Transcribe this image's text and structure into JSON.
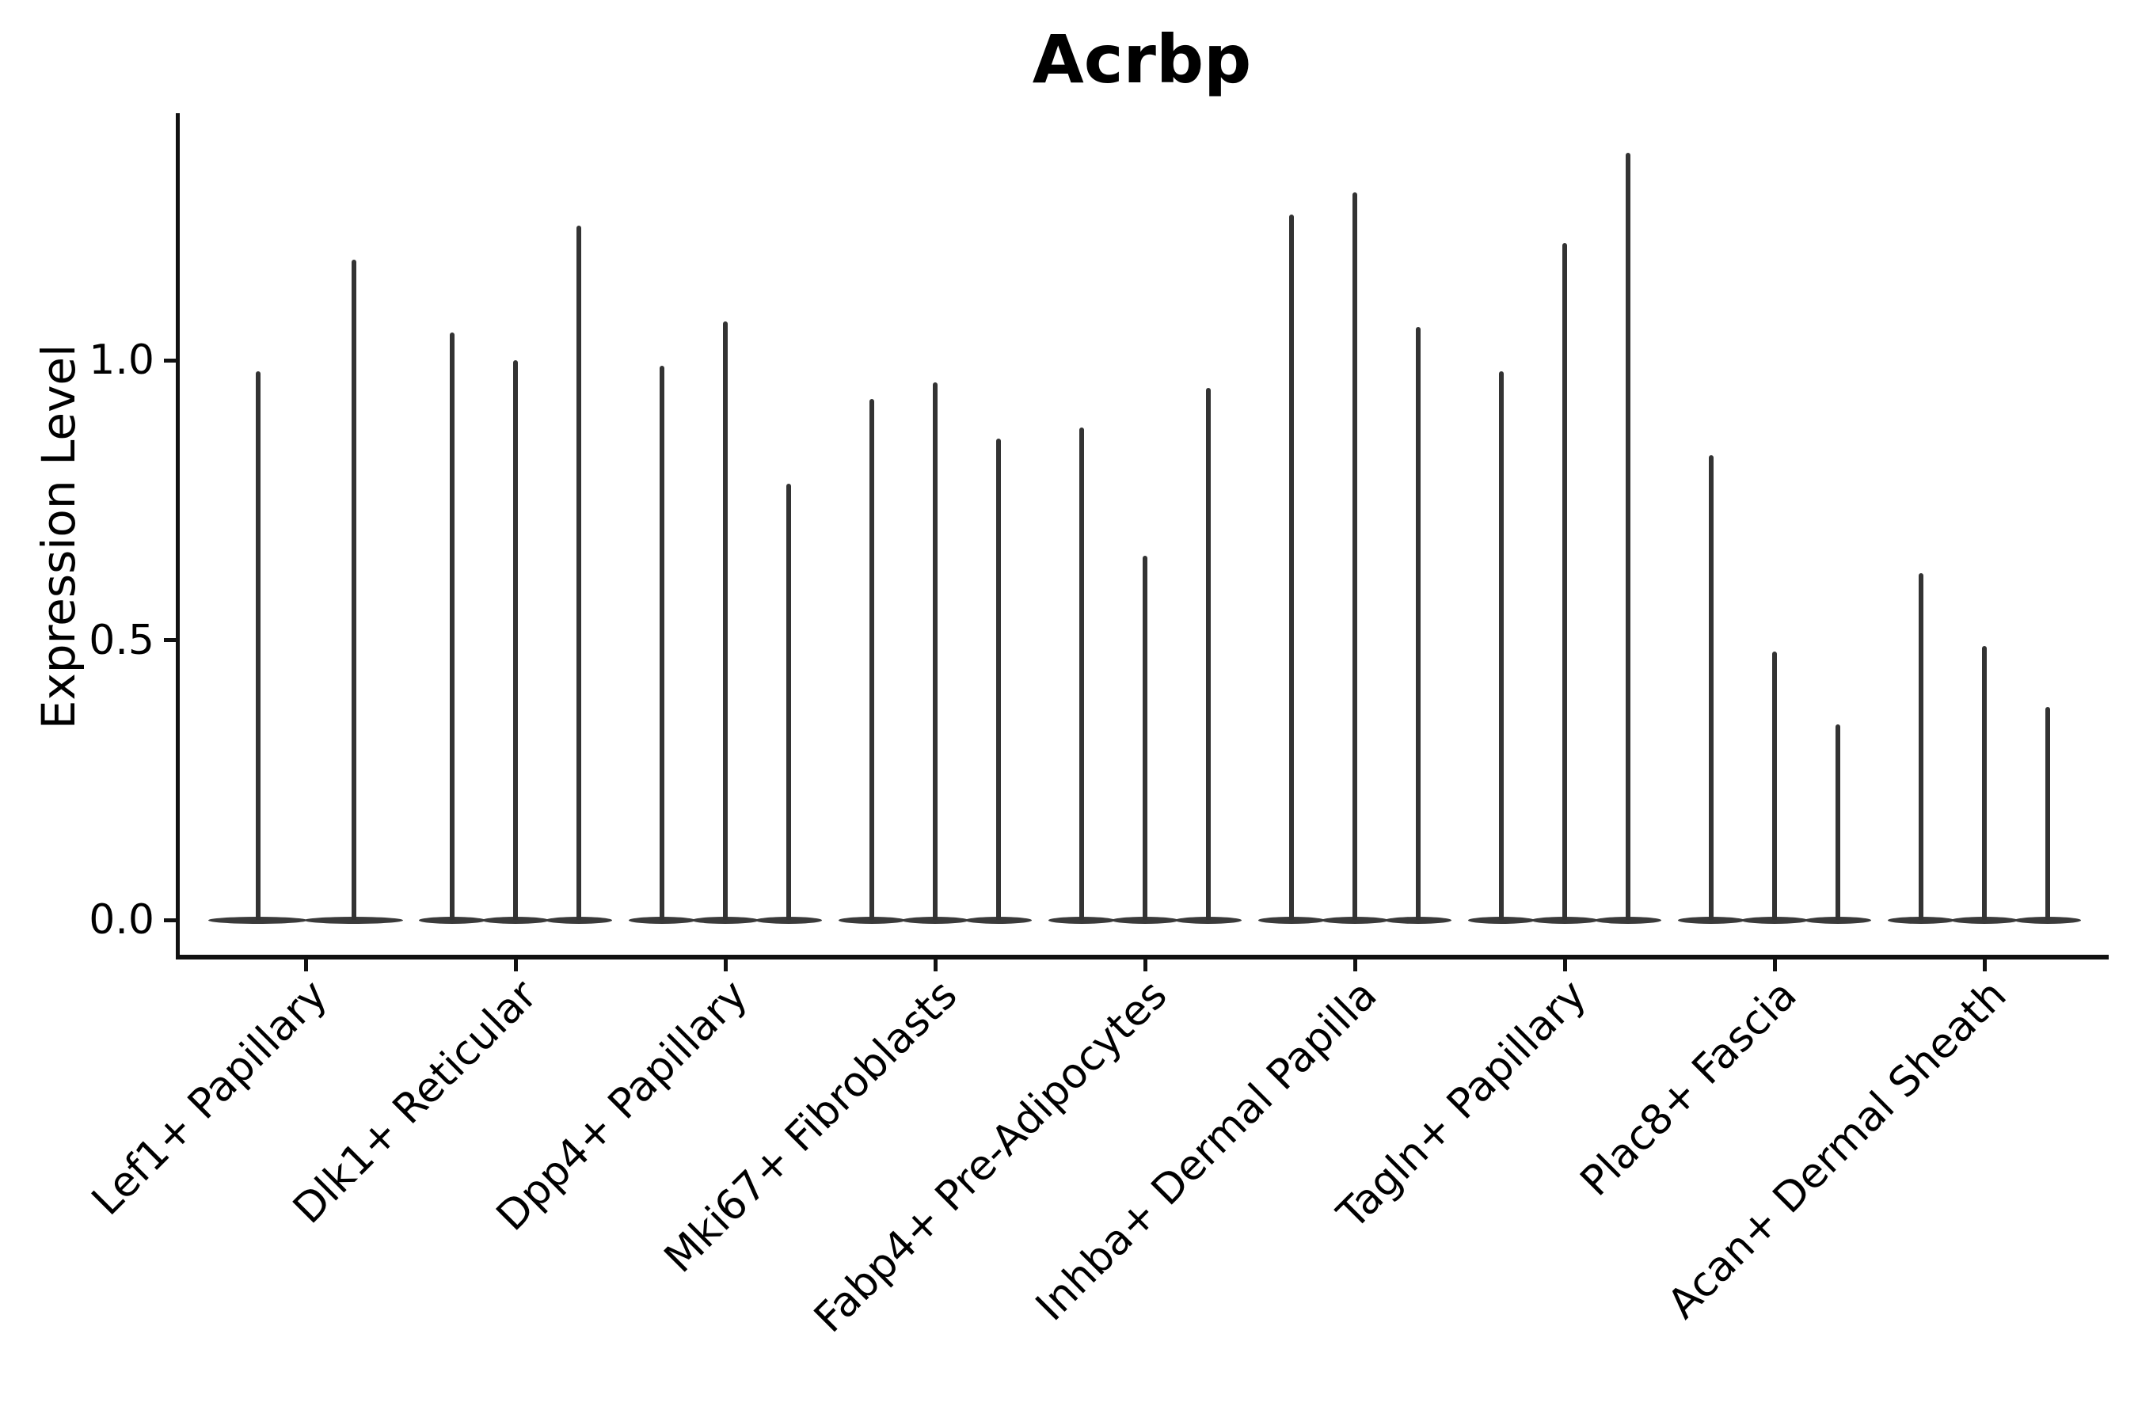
{
  "chart_data": {
    "type": "violin",
    "title": "Acrbp",
    "ylabel": "Expression Level",
    "xlabel": "",
    "yticks": [
      "0.0",
      "0.5",
      "1.0"
    ],
    "ylim": [
      -0.07,
      1.44
    ],
    "grid": false,
    "legend": "none",
    "description": "Needle-thin violins (near-zero density with a thin line up to the max expression value), grouped per cell type; first group has 2 violins, all others have 3.",
    "groups": [
      {
        "label": "Lef1+ Papillary",
        "violins": [
          0.98,
          1.18
        ]
      },
      {
        "label": "Dlk1+ Reticular",
        "violins": [
          1.05,
          1.0,
          1.24
        ]
      },
      {
        "label": "Dpp4+ Papillary",
        "violins": [
          0.99,
          1.07,
          0.78
        ]
      },
      {
        "label": "Mki67+ Fibroblasts",
        "violins": [
          0.93,
          0.96,
          0.86
        ]
      },
      {
        "label": "Fabp4+ Pre-Adipocytes",
        "violins": [
          0.88,
          0.65,
          0.95
        ]
      },
      {
        "label": "Inhba+ Dermal Papilla",
        "violins": [
          1.26,
          1.3,
          1.06
        ]
      },
      {
        "label": "Tagln+ Papillary",
        "violins": [
          0.98,
          1.21,
          1.37
        ]
      },
      {
        "label": "Plac8+ Fascia",
        "violins": [
          0.83,
          0.48,
          0.35
        ]
      },
      {
        "label": "Acan+ Dermal Sheath",
        "violins": [
          0.62,
          0.49,
          0.38
        ]
      }
    ],
    "colors": {
      "spike": "#333333",
      "violin_base": "#3a3a3a",
      "axis": "#111111",
      "text": "#000000",
      "background": "#ffffff"
    }
  }
}
